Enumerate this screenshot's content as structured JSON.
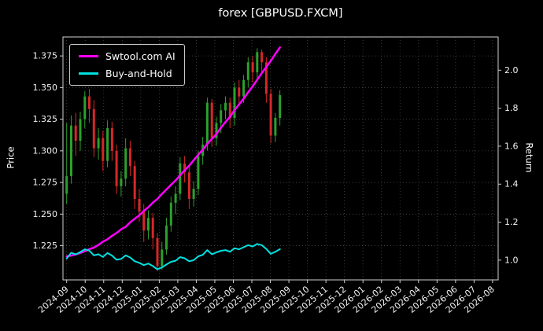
{
  "chart_data": {
    "type": "line",
    "title": "forex [GBPUSD.FXCM]",
    "ylabel_left": "Price",
    "ylabel_right": "Return",
    "background": "#000000",
    "grid": true,
    "legend_position": "upper left",
    "x_unit": "months since 2024-09",
    "x_tick_labels": [
      "2024-09",
      "2024-10",
      "2024-11",
      "2024-12",
      "2025-01",
      "2025-02",
      "2025-03",
      "2025-04",
      "2025-05",
      "2025-06",
      "2025-07",
      "2025-08",
      "2025-09",
      "2025-10",
      "2025-11",
      "2025-12",
      "2026-01",
      "2026-02",
      "2026-03",
      "2026-04",
      "2026-05",
      "2026-06",
      "2026-07",
      "2026-08"
    ],
    "left_axis": {
      "range": [
        1.198,
        1.39
      ],
      "ticks": [
        1.225,
        1.25,
        1.275,
        1.3,
        1.325,
        1.35,
        1.375
      ],
      "tick_labels": [
        "1.225",
        "1.250",
        "1.275",
        "1.300",
        "1.325",
        "1.350",
        "1.375"
      ]
    },
    "right_axis": {
      "range": [
        0.896,
        2.175
      ],
      "ticks": [
        1.0,
        1.2,
        1.4,
        1.6,
        1.8,
        2.0
      ],
      "tick_labels": [
        "1.0",
        "1.2",
        "1.4",
        "1.6",
        "1.8",
        "2.0"
      ]
    },
    "x": [
      0,
      0.245,
      0.49,
      0.735,
      0.98,
      1.225,
      1.47,
      1.715,
      1.96,
      2.205,
      2.45,
      2.695,
      2.94,
      3.185,
      3.43,
      3.675,
      3.92,
      4.165,
      4.41,
      4.655,
      4.9,
      5.145,
      5.39,
      5.635,
      5.88,
      6.125,
      6.37,
      6.615,
      6.86,
      7.105,
      7.35,
      7.595,
      7.84,
      8.085,
      8.33,
      8.575,
      8.82,
      9.065,
      9.31,
      9.555,
      9.8,
      10.045,
      10.29,
      10.535,
      10.78,
      11.025,
      11.27,
      11.515
    ],
    "candles": {
      "name": "GBPUSD OHLC price",
      "axis": "left",
      "up_color": "#2ca02c",
      "down_color": "#d62728",
      "ohlc": [
        [
          1.266,
          1.322,
          1.258,
          1.28
        ],
        [
          1.28,
          1.328,
          1.274,
          1.32
        ],
        [
          1.32,
          1.33,
          1.296,
          1.308
        ],
        [
          1.308,
          1.331,
          1.3,
          1.325
        ],
        [
          1.325,
          1.347,
          1.318,
          1.343
        ],
        [
          1.343,
          1.349,
          1.322,
          1.333
        ],
        [
          1.333,
          1.34,
          1.295,
          1.302
        ],
        [
          1.302,
          1.318,
          1.293,
          1.31
        ],
        [
          1.31,
          1.316,
          1.284,
          1.292
        ],
        [
          1.292,
          1.324,
          1.287,
          1.318
        ],
        [
          1.318,
          1.323,
          1.292,
          1.3
        ],
        [
          1.3,
          1.305,
          1.266,
          1.272
        ],
        [
          1.272,
          1.284,
          1.264,
          1.278
        ],
        [
          1.278,
          1.31,
          1.272,
          1.302
        ],
        [
          1.302,
          1.308,
          1.28,
          1.288
        ],
        [
          1.288,
          1.292,
          1.254,
          1.262
        ],
        [
          1.262,
          1.27,
          1.244,
          1.252
        ],
        [
          1.252,
          1.258,
          1.228,
          1.237
        ],
        [
          1.237,
          1.253,
          1.23,
          1.247
        ],
        [
          1.247,
          1.251,
          1.222,
          1.231
        ],
        [
          1.231,
          1.235,
          1.205,
          1.209
        ],
        [
          1.209,
          1.228,
          1.206,
          1.222
        ],
        [
          1.222,
          1.247,
          1.218,
          1.241
        ],
        [
          1.241,
          1.264,
          1.236,
          1.259
        ],
        [
          1.259,
          1.272,
          1.25,
          1.266
        ],
        [
          1.266,
          1.295,
          1.261,
          1.29
        ],
        [
          1.29,
          1.296,
          1.275,
          1.283
        ],
        [
          1.283,
          1.288,
          1.254,
          1.262
        ],
        [
          1.262,
          1.276,
          1.256,
          1.27
        ],
        [
          1.27,
          1.3,
          1.265,
          1.296
        ],
        [
          1.296,
          1.311,
          1.289,
          1.305
        ],
        [
          1.305,
          1.342,
          1.3,
          1.338
        ],
        [
          1.338,
          1.341,
          1.303,
          1.31
        ],
        [
          1.31,
          1.327,
          1.304,
          1.322
        ],
        [
          1.322,
          1.337,
          1.314,
          1.332
        ],
        [
          1.332,
          1.343,
          1.325,
          1.338
        ],
        [
          1.338,
          1.342,
          1.318,
          1.326
        ],
        [
          1.326,
          1.354,
          1.32,
          1.35
        ],
        [
          1.35,
          1.356,
          1.336,
          1.343
        ],
        [
          1.343,
          1.36,
          1.338,
          1.356
        ],
        [
          1.356,
          1.374,
          1.35,
          1.37
        ],
        [
          1.37,
          1.375,
          1.354,
          1.362
        ],
        [
          1.362,
          1.381,
          1.357,
          1.378
        ],
        [
          1.378,
          1.38,
          1.362,
          1.37
        ],
        [
          1.37,
          1.374,
          1.338,
          1.345
        ],
        [
          1.345,
          1.349,
          1.306,
          1.312
        ],
        [
          1.312,
          1.33,
          1.307,
          1.326
        ],
        [
          1.326,
          1.348,
          1.32,
          1.344
        ]
      ]
    },
    "series": [
      {
        "name": "Swtool.com AI",
        "axis": "right",
        "color": "#ff00ff",
        "width": 2.5,
        "values": [
          1.02,
          1.024,
          1.03,
          1.038,
          1.047,
          1.058,
          1.066,
          1.08,
          1.097,
          1.11,
          1.128,
          1.143,
          1.162,
          1.176,
          1.199,
          1.218,
          1.236,
          1.259,
          1.279,
          1.303,
          1.322,
          1.349,
          1.372,
          1.397,
          1.419,
          1.447,
          1.473,
          1.497,
          1.526,
          1.555,
          1.581,
          1.612,
          1.638,
          1.664,
          1.697,
          1.727,
          1.755,
          1.79,
          1.82,
          1.85,
          1.884,
          1.915,
          1.95,
          1.985,
          2.017,
          2.049,
          2.086,
          2.12
        ]
      },
      {
        "name": "Buy-and-Hold",
        "axis": "right",
        "color": "#00e0e0",
        "width": 2,
        "values": [
          1.008,
          1.039,
          1.03,
          1.043,
          1.057,
          1.05,
          1.025,
          1.031,
          1.017,
          1.038,
          1.024,
          1.002,
          1.006,
          1.025,
          1.014,
          0.994,
          0.986,
          0.974,
          0.982,
          0.969,
          0.952,
          0.962,
          0.977,
          0.991,
          0.997,
          1.016,
          1.01,
          0.994,
          1.0,
          1.02,
          1.028,
          1.053,
          1.031,
          1.041,
          1.049,
          1.053,
          1.044,
          1.063,
          1.057,
          1.068,
          1.079,
          1.072,
          1.085,
          1.079,
          1.059,
          1.033,
          1.044,
          1.058
        ]
      }
    ]
  }
}
